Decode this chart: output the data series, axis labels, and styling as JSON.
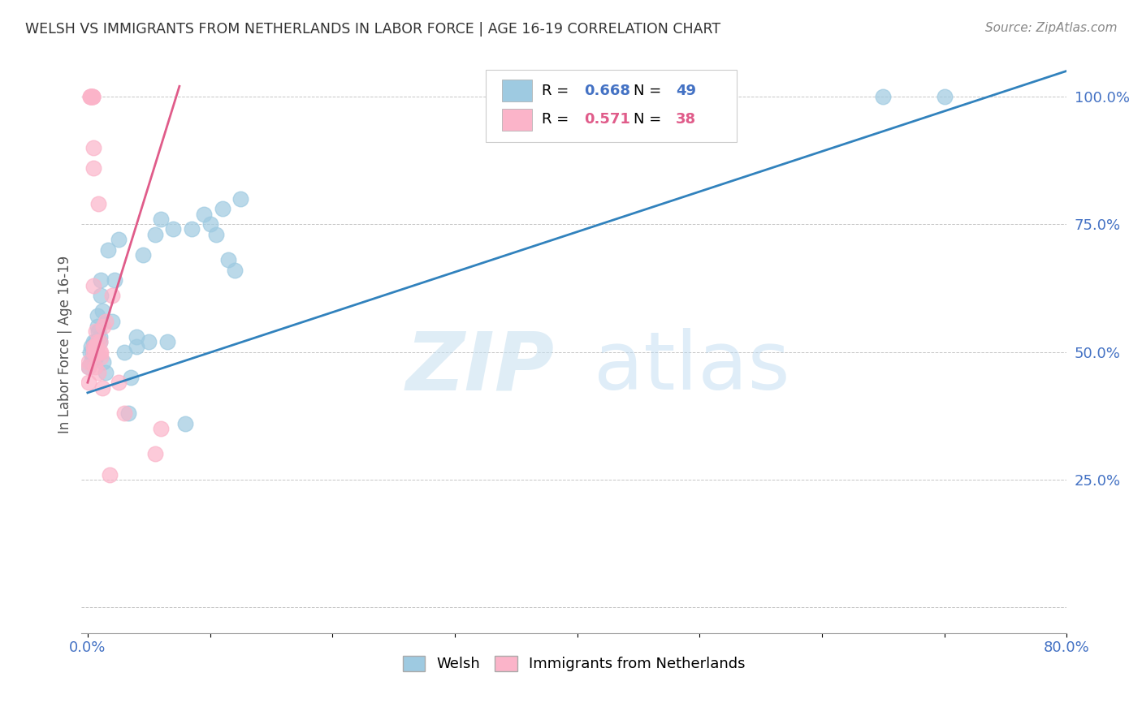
{
  "title": "WELSH VS IMMIGRANTS FROM NETHERLANDS IN LABOR FORCE | AGE 16-19 CORRELATION CHART",
  "source": "Source: ZipAtlas.com",
  "ylabel": "In Labor Force | Age 16-19",
  "xlim": [
    -0.005,
    0.8
  ],
  "ylim": [
    -0.05,
    1.08
  ],
  "x_ticks": [
    0.0,
    0.1,
    0.2,
    0.3,
    0.4,
    0.5,
    0.6,
    0.7,
    0.8
  ],
  "x_tick_labels": [
    "0.0%",
    "",
    "",
    "",
    "",
    "",
    "",
    "",
    "80.0%"
  ],
  "y_ticks": [
    0.0,
    0.25,
    0.5,
    0.75,
    1.0
  ],
  "y_tick_labels": [
    "",
    "25.0%",
    "50.0%",
    "75.0%",
    "100.0%"
  ],
  "welsh_color": "#9ecae1",
  "netherlands_color": "#fbb4c9",
  "welsh_line_color": "#3182bd",
  "netherlands_line_color": "#e05c8a",
  "R_welsh": 0.668,
  "N_welsh": 49,
  "R_netherlands": 0.571,
  "N_netherlands": 38,
  "watermark_zip": "ZIP",
  "watermark_atlas": "atlas",
  "legend_welsh": "Welsh",
  "legend_netherlands": "Immigrants from Netherlands",
  "welsh_line_x": [
    0.0,
    0.8
  ],
  "welsh_line_y": [
    0.42,
    1.05
  ],
  "netherlands_line_x": [
    0.0,
    0.075
  ],
  "netherlands_line_y": [
    0.44,
    1.02
  ],
  "welsh_x": [
    0.001,
    0.002,
    0.003,
    0.003,
    0.004,
    0.005,
    0.005,
    0.005,
    0.006,
    0.006,
    0.006,
    0.007,
    0.007,
    0.008,
    0.008,
    0.009,
    0.01,
    0.01,
    0.011,
    0.011,
    0.012,
    0.013,
    0.015,
    0.017,
    0.02,
    0.022,
    0.025,
    0.03,
    0.033,
    0.035,
    0.04,
    0.04,
    0.045,
    0.05,
    0.055,
    0.06,
    0.065,
    0.07,
    0.08,
    0.085,
    0.095,
    0.1,
    0.105,
    0.11,
    0.115,
    0.12,
    0.125,
    0.65,
    0.7
  ],
  "welsh_y": [
    0.47,
    0.5,
    0.48,
    0.51,
    0.5,
    0.49,
    0.51,
    0.52,
    0.49,
    0.5,
    0.52,
    0.49,
    0.51,
    0.55,
    0.57,
    0.54,
    0.53,
    0.52,
    0.61,
    0.64,
    0.58,
    0.48,
    0.46,
    0.7,
    0.56,
    0.64,
    0.72,
    0.5,
    0.38,
    0.45,
    0.51,
    0.53,
    0.69,
    0.52,
    0.73,
    0.76,
    0.52,
    0.74,
    0.36,
    0.74,
    0.77,
    0.75,
    0.73,
    0.78,
    0.68,
    0.66,
    0.8,
    1.0,
    1.0
  ],
  "netherlands_x": [
    0.001,
    0.001,
    0.001,
    0.002,
    0.002,
    0.003,
    0.003,
    0.003,
    0.004,
    0.004,
    0.004,
    0.005,
    0.005,
    0.005,
    0.005,
    0.005,
    0.006,
    0.006,
    0.006,
    0.007,
    0.007,
    0.008,
    0.008,
    0.009,
    0.009,
    0.01,
    0.01,
    0.011,
    0.011,
    0.012,
    0.013,
    0.015,
    0.018,
    0.02,
    0.025,
    0.03,
    0.055,
    0.06
  ],
  "netherlands_y": [
    0.44,
    0.47,
    0.48,
    1.0,
    1.0,
    1.0,
    1.0,
    1.0,
    1.0,
    1.0,
    1.0,
    0.86,
    0.9,
    0.63,
    0.5,
    0.51,
    0.5,
    0.51,
    0.47,
    0.51,
    0.54,
    0.5,
    0.52,
    0.79,
    0.46,
    0.5,
    0.52,
    0.49,
    0.5,
    0.43,
    0.55,
    0.56,
    0.26,
    0.61,
    0.44,
    0.38,
    0.3,
    0.35
  ]
}
